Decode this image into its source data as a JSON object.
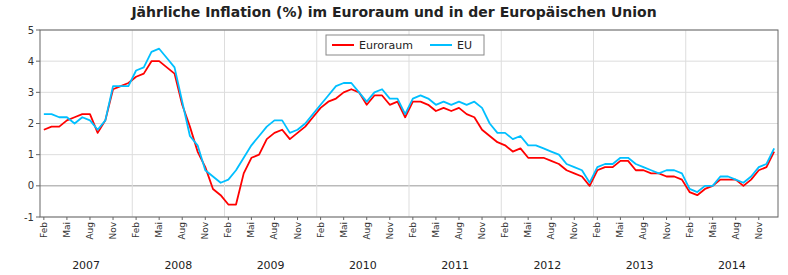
{
  "chart_data": {
    "type": "line",
    "title": "Jährliche Inflation (%) im Euroraum und in der Europäischen Union",
    "categories": [
      "Feb",
      null,
      null,
      "Mai",
      null,
      null,
      "Aug",
      null,
      null,
      "Nov",
      null,
      null,
      "Feb",
      null,
      null,
      "Mai",
      null,
      null,
      "Aug",
      null,
      null,
      "Nov",
      null,
      null,
      "Feb",
      null,
      null,
      "Mai",
      null,
      null,
      "Aug",
      null,
      null,
      "Nov",
      null,
      null,
      "Feb",
      null,
      null,
      "Mai",
      null,
      null,
      "Aug",
      null,
      null,
      "Nov",
      null,
      null,
      "Feb",
      null,
      null,
      "Mai",
      null,
      null,
      "Aug",
      null,
      null,
      "Nov",
      null,
      null,
      "Feb",
      null,
      null,
      "Mai",
      null,
      null,
      "Aug",
      null,
      null,
      "Nov",
      null,
      null,
      "Feb",
      null,
      null,
      "Mai",
      null,
      null,
      "Aug",
      null,
      null,
      "Nov",
      null,
      null,
      "Feb",
      null,
      null,
      "Mai",
      null,
      null,
      "Aug",
      null,
      null,
      "Nov",
      null,
      null
    ],
    "category_groups": [
      "2007",
      "2008",
      "2009",
      "2010",
      "2011",
      "2012",
      "2013",
      "2014"
    ],
    "series": [
      {
        "name": "Euroraum",
        "color": "#FF0000",
        "values": [
          1.8,
          1.9,
          1.9,
          2.1,
          2.2,
          2.3,
          2.3,
          1.7,
          2.1,
          3.1,
          3.2,
          3.3,
          3.5,
          3.6,
          4.0,
          4.0,
          3.8,
          3.6,
          2.6,
          1.9,
          1.1,
          0.6,
          -0.1,
          -0.3,
          -0.6,
          -0.6,
          0.4,
          0.9,
          1.0,
          1.5,
          1.7,
          1.8,
          1.5,
          1.7,
          1.9,
          2.2,
          2.5,
          2.7,
          2.8,
          3.0,
          3.1,
          3.0,
          2.6,
          2.9,
          2.9,
          2.6,
          2.7,
          2.2,
          2.7,
          2.7,
          2.6,
          2.4,
          2.5,
          2.4,
          2.5,
          2.3,
          2.2,
          1.8,
          1.6,
          1.4,
          1.3,
          1.1,
          1.2,
          0.9,
          0.9,
          0.9,
          0.8,
          0.7,
          0.5,
          0.4,
          0.3,
          0.0,
          0.5,
          0.6,
          0.6,
          0.8,
          0.8,
          0.5,
          0.5,
          0.4,
          0.4,
          0.3,
          0.3,
          0.2,
          -0.2,
          -0.3,
          -0.1,
          0.0,
          0.2,
          0.2,
          0.2,
          0.0,
          0.2,
          0.5,
          0.6,
          1.1
        ]
      },
      {
        "name": "EU",
        "color": "#00BFFF",
        "values": [
          2.3,
          2.3,
          2.2,
          2.2,
          2.0,
          2.2,
          2.1,
          1.8,
          2.1,
          3.2,
          3.2,
          3.2,
          3.7,
          3.8,
          4.3,
          4.4,
          4.1,
          3.8,
          2.7,
          1.6,
          1.3,
          0.5,
          0.3,
          0.1,
          0.2,
          0.5,
          0.9,
          1.3,
          1.6,
          1.9,
          2.1,
          2.1,
          1.7,
          1.8,
          2.0,
          2.3,
          2.6,
          2.9,
          3.2,
          3.3,
          3.3,
          3.0,
          2.7,
          3.0,
          3.1,
          2.8,
          2.8,
          2.3,
          2.8,
          2.9,
          2.8,
          2.6,
          2.7,
          2.6,
          2.7,
          2.6,
          2.7,
          2.5,
          2.0,
          1.7,
          1.7,
          1.5,
          1.6,
          1.3,
          1.3,
          1.2,
          1.1,
          1.0,
          0.7,
          0.6,
          0.5,
          0.1,
          0.6,
          0.7,
          0.7,
          0.9,
          0.9,
          0.7,
          0.6,
          0.5,
          0.4,
          0.5,
          0.5,
          0.4,
          -0.1,
          -0.2,
          0.0,
          0.0,
          0.3,
          0.3,
          0.2,
          0.1,
          0.3,
          0.6,
          0.7,
          1.2
        ]
      }
    ],
    "ylim": [
      -1,
      5
    ],
    "yticks": [
      -1,
      0,
      1,
      2,
      3,
      4,
      5
    ],
    "grid": true,
    "legend": "top"
  }
}
